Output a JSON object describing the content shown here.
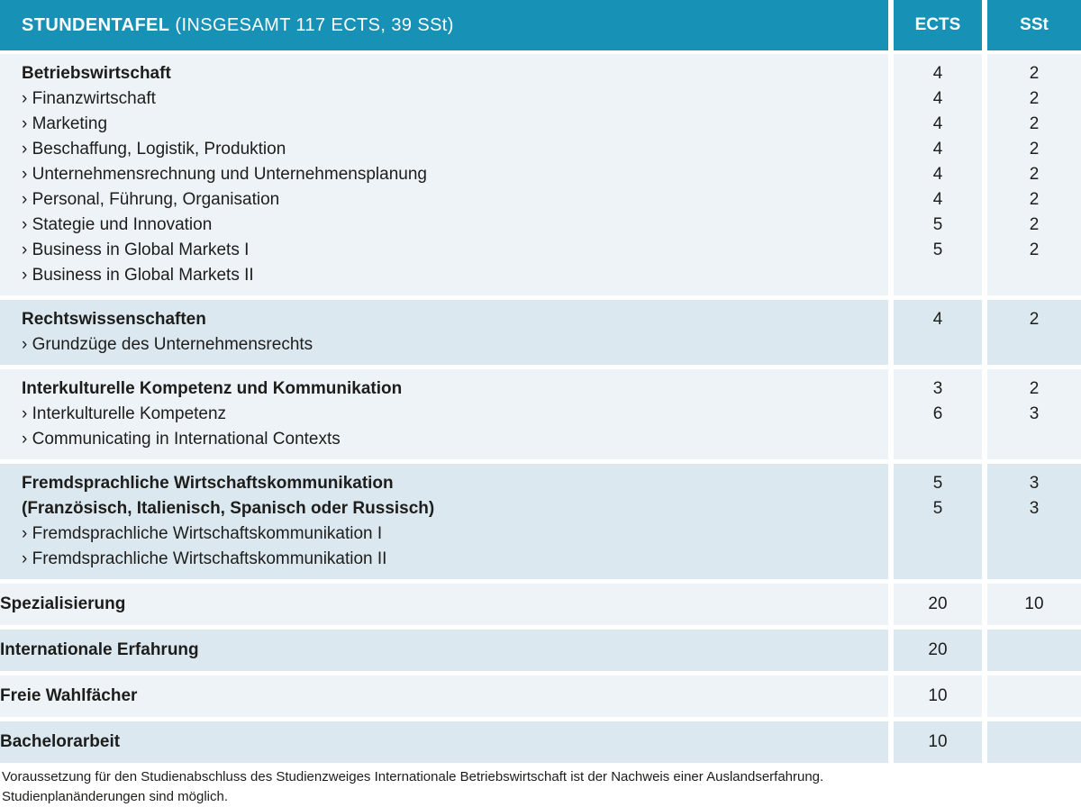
{
  "colors": {
    "header_bg": "#1791b5",
    "band_light": "#edf3f7",
    "band_dark": "#dce8f0",
    "gap_white": "#ffffff",
    "text_dark": "#1d1d1b",
    "header_text": "#ffffff"
  },
  "list_bullet": "›",
  "header": {
    "title_bold": "STUNDENTAFEL",
    "title_rest": " (INSGESAMT 117 ECTS, 39 SSt)",
    "col_ects": "ECTS",
    "col_sst": "SSt"
  },
  "sections": [
    {
      "shade": "light",
      "rows": [
        {
          "label": "Betriebswirtschaft",
          "bold": true,
          "bullet": false,
          "ects": "",
          "sst": ""
        },
        {
          "label": "Finanzwirtschaft",
          "bold": false,
          "bullet": true,
          "ects": "4",
          "sst": "2"
        },
        {
          "label": "Marketing",
          "bold": false,
          "bullet": true,
          "ects": "4",
          "sst": "2"
        },
        {
          "label": "Beschaffung, Logistik, Produktion",
          "bold": false,
          "bullet": true,
          "ects": "4",
          "sst": "2"
        },
        {
          "label": "Unternehmensrechnung und Unternehmensplanung",
          "bold": false,
          "bullet": true,
          "ects": "4",
          "sst": "2"
        },
        {
          "label": "Personal, Führung, Organisation",
          "bold": false,
          "bullet": true,
          "ects": "4",
          "sst": "2"
        },
        {
          "label": "Stategie und Innovation",
          "bold": false,
          "bullet": true,
          "ects": "4",
          "sst": "2"
        },
        {
          "label": "Business in Global Markets I",
          "bold": false,
          "bullet": true,
          "ects": "5",
          "sst": "2"
        },
        {
          "label": "Business in Global Markets II",
          "bold": false,
          "bullet": true,
          "ects": "5",
          "sst": "2"
        }
      ]
    },
    {
      "shade": "dark",
      "rows": [
        {
          "label": "Rechtswissenschaften",
          "bold": true,
          "bullet": false,
          "ects": "",
          "sst": ""
        },
        {
          "label": "Grundzüge des Unternehmensrechts",
          "bold": false,
          "bullet": true,
          "ects": "4",
          "sst": "2"
        }
      ]
    },
    {
      "shade": "light",
      "rows": [
        {
          "label": "Interkulturelle Kompetenz und Kommunikation",
          "bold": true,
          "bullet": false,
          "ects": "",
          "sst": ""
        },
        {
          "label": "Interkulturelle Kompetenz",
          "bold": false,
          "bullet": true,
          "ects": "3",
          "sst": "2"
        },
        {
          "label": "Communicating in International Contexts",
          "bold": false,
          "bullet": true,
          "ects": "6",
          "sst": "3"
        }
      ]
    },
    {
      "shade": "dark",
      "rows": [
        {
          "label": "Fremdsprachliche Wirtschaftskommunikation",
          "bold": true,
          "bullet": false,
          "ects": "",
          "sst": ""
        },
        {
          "label": "(Französisch, Italienisch, Spanisch oder Russisch)",
          "bold": true,
          "bullet": false,
          "ects": "",
          "sst": ""
        },
        {
          "label": "Fremdsprachliche Wirtschaftskommunikation I",
          "bold": false,
          "bullet": true,
          "ects": "5",
          "sst": "3"
        },
        {
          "label": "Fremdsprachliche Wirtschaftskommunikation II",
          "bold": false,
          "bullet": true,
          "ects": "5",
          "sst": "3"
        }
      ]
    },
    {
      "shade": "light",
      "rows": [
        {
          "label": "Spezialisierung",
          "bold": true,
          "bullet": false,
          "ects": "20",
          "sst": "10"
        }
      ]
    },
    {
      "shade": "dark",
      "rows": [
        {
          "label": "Internationale Erfahrung",
          "bold": true,
          "bullet": false,
          "ects": "20",
          "sst": ""
        }
      ]
    },
    {
      "shade": "light",
      "rows": [
        {
          "label": "Freie Wahlfächer",
          "bold": true,
          "bullet": false,
          "ects": "10",
          "sst": ""
        }
      ]
    },
    {
      "shade": "dark",
      "rows": [
        {
          "label": "Bachelorarbeit",
          "bold": true,
          "bullet": false,
          "ects": "10",
          "sst": ""
        }
      ]
    }
  ],
  "footer": {
    "line1": "Voraussetzung für den Studienabschluss des Studienzweiges Internationale Betriebswirtschaft ist der Nachweis einer Auslandserfahrung.",
    "line2": "Studienplanänderungen sind möglich."
  }
}
